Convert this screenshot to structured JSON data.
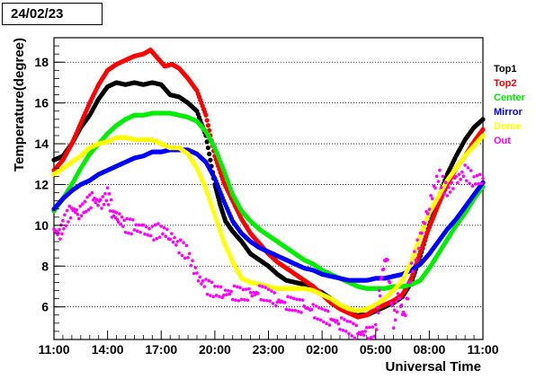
{
  "date_label": "24/02/23",
  "chart_data": {
    "type": "scatter",
    "title": "",
    "xlabel": "Universal Time",
    "ylabel": "Temperature(degree)",
    "xlim": [
      0,
      24
    ],
    "ylim": [
      4.4,
      19.2
    ],
    "grid": "horizontal dotted lines at y ticks",
    "legend_position": "right",
    "x_unit": "hours since 11:00",
    "x_tick_labels": [
      "11:00",
      "14:00",
      "17:00",
      "20:00",
      "23:00",
      "02:00",
      "05:00",
      "08:00",
      "11:00"
    ],
    "x_tick_values": [
      0,
      3,
      6,
      9,
      12,
      15,
      18,
      21,
      24
    ],
    "y_ticks": [
      6,
      8,
      10,
      12,
      14,
      16,
      18
    ],
    "series": [
      {
        "name": "Top1",
        "color": "#000000",
        "points": [
          [
            0,
            13.2
          ],
          [
            0.5,
            13.4
          ],
          [
            1.0,
            14.0
          ],
          [
            1.5,
            14.8
          ],
          [
            2.0,
            15.4
          ],
          [
            2.5,
            16.2
          ],
          [
            3.0,
            16.8
          ],
          [
            3.5,
            17.0
          ],
          [
            4.0,
            16.9
          ],
          [
            4.5,
            17.0
          ],
          [
            5.0,
            16.9
          ],
          [
            5.5,
            17.0
          ],
          [
            6.0,
            16.9
          ],
          [
            6.5,
            16.4
          ],
          [
            7.0,
            16.3
          ],
          [
            7.5,
            16.0
          ],
          [
            8.0,
            15.6
          ],
          [
            8.5,
            14.4
          ],
          [
            9.0,
            12.0
          ],
          [
            9.3,
            11.0
          ],
          [
            9.6,
            10.2
          ],
          [
            10.0,
            9.7
          ],
          [
            10.5,
            9.2
          ],
          [
            11.0,
            8.6
          ],
          [
            11.5,
            8.3
          ],
          [
            12.0,
            8.0
          ],
          [
            12.5,
            7.6
          ],
          [
            13.0,
            7.3
          ],
          [
            13.5,
            7.2
          ],
          [
            14.0,
            7.1
          ],
          [
            14.5,
            6.9
          ],
          [
            15.0,
            6.7
          ],
          [
            15.5,
            6.4
          ],
          [
            16.0,
            6.1
          ],
          [
            16.5,
            5.8
          ],
          [
            17.0,
            5.6
          ],
          [
            17.5,
            5.6
          ],
          [
            18.0,
            5.8
          ],
          [
            18.5,
            6.0
          ],
          [
            19.0,
            6.2
          ],
          [
            19.5,
            6.5
          ],
          [
            20.0,
            7.2
          ],
          [
            20.5,
            8.5
          ],
          [
            21.0,
            10.0
          ],
          [
            21.5,
            11.3
          ],
          [
            22.0,
            12.5
          ],
          [
            22.5,
            13.4
          ],
          [
            23.0,
            14.2
          ],
          [
            23.5,
            14.8
          ],
          [
            24.0,
            15.2
          ]
        ]
      },
      {
        "name": "Top2",
        "color": "#ff0000",
        "points": [
          [
            0,
            12.7
          ],
          [
            0.5,
            13.2
          ],
          [
            1.0,
            14.0
          ],
          [
            1.5,
            15.0
          ],
          [
            2.0,
            16.0
          ],
          [
            2.5,
            16.9
          ],
          [
            3.0,
            17.6
          ],
          [
            3.5,
            17.9
          ],
          [
            4.0,
            18.1
          ],
          [
            4.5,
            18.3
          ],
          [
            5.0,
            18.4
          ],
          [
            5.4,
            18.6
          ],
          [
            5.8,
            18.2
          ],
          [
            6.2,
            17.8
          ],
          [
            6.6,
            17.9
          ],
          [
            7.0,
            17.7
          ],
          [
            7.5,
            17.2
          ],
          [
            8.0,
            16.6
          ],
          [
            8.5,
            15.4
          ],
          [
            9.0,
            13.4
          ],
          [
            9.5,
            12.1
          ],
          [
            10.0,
            11.2
          ],
          [
            10.5,
            10.3
          ],
          [
            11.0,
            9.6
          ],
          [
            11.5,
            9.1
          ],
          [
            12.0,
            8.6
          ],
          [
            12.5,
            8.2
          ],
          [
            13.0,
            7.9
          ],
          [
            13.5,
            7.6
          ],
          [
            14.0,
            7.3
          ],
          [
            14.5,
            7.0
          ],
          [
            15.0,
            6.6
          ],
          [
            15.5,
            6.2
          ],
          [
            16.0,
            5.9
          ],
          [
            16.5,
            5.7
          ],
          [
            17.0,
            5.5
          ],
          [
            17.5,
            5.6
          ],
          [
            18.0,
            5.9
          ],
          [
            18.5,
            6.1
          ],
          [
            19.0,
            6.3
          ],
          [
            19.5,
            6.6
          ],
          [
            20.0,
            7.4
          ],
          [
            20.5,
            8.7
          ],
          [
            21.0,
            9.9
          ],
          [
            21.5,
            11.0
          ],
          [
            22.0,
            12.0
          ],
          [
            22.5,
            12.8
          ],
          [
            23.0,
            13.4
          ],
          [
            23.5,
            14.1
          ],
          [
            24.0,
            14.7
          ]
        ]
      },
      {
        "name": "Center",
        "color": "#00ee00",
        "points": [
          [
            0,
            10.7
          ],
          [
            0.5,
            11.3
          ],
          [
            1.0,
            12.0
          ],
          [
            1.5,
            12.8
          ],
          [
            2.0,
            13.5
          ],
          [
            2.5,
            14.0
          ],
          [
            3.0,
            14.5
          ],
          [
            3.5,
            14.9
          ],
          [
            4.0,
            15.2
          ],
          [
            4.5,
            15.4
          ],
          [
            5.0,
            15.4
          ],
          [
            5.5,
            15.5
          ],
          [
            6.0,
            15.5
          ],
          [
            6.5,
            15.5
          ],
          [
            7.0,
            15.4
          ],
          [
            7.5,
            15.3
          ],
          [
            8.0,
            15.1
          ],
          [
            8.5,
            14.6
          ],
          [
            9.0,
            13.8
          ],
          [
            9.5,
            12.7
          ],
          [
            10.0,
            11.5
          ],
          [
            10.5,
            10.7
          ],
          [
            11.0,
            10.2
          ],
          [
            11.5,
            9.8
          ],
          [
            12.0,
            9.5
          ],
          [
            12.5,
            9.2
          ],
          [
            13.0,
            8.9
          ],
          [
            13.5,
            8.6
          ],
          [
            14.0,
            8.3
          ],
          [
            14.5,
            8.1
          ],
          [
            15.0,
            7.8
          ],
          [
            15.5,
            7.6
          ],
          [
            16.0,
            7.4
          ],
          [
            16.5,
            7.2
          ],
          [
            17.0,
            7.0
          ],
          [
            17.5,
            6.9
          ],
          [
            18.0,
            6.9
          ],
          [
            18.5,
            6.9
          ],
          [
            19.0,
            7.0
          ],
          [
            19.5,
            7.0
          ],
          [
            20.0,
            7.1
          ],
          [
            20.5,
            7.3
          ],
          [
            21.0,
            7.9
          ],
          [
            21.5,
            8.6
          ],
          [
            22.0,
            9.3
          ],
          [
            22.5,
            10.0
          ],
          [
            23.0,
            10.6
          ],
          [
            23.5,
            11.3
          ],
          [
            24.0,
            11.9
          ]
        ]
      },
      {
        "name": "Mirror",
        "color": "#0000ff",
        "points": [
          [
            0,
            10.8
          ],
          [
            0.5,
            11.3
          ],
          [
            1.0,
            11.7
          ],
          [
            1.5,
            12.0
          ],
          [
            2.0,
            12.2
          ],
          [
            2.5,
            12.5
          ],
          [
            3.0,
            12.7
          ],
          [
            3.5,
            12.9
          ],
          [
            4.0,
            13.1
          ],
          [
            4.5,
            13.3
          ],
          [
            5.0,
            13.4
          ],
          [
            5.5,
            13.6
          ],
          [
            6.0,
            13.6
          ],
          [
            6.5,
            13.7
          ],
          [
            7.0,
            13.7
          ],
          [
            7.5,
            13.7
          ],
          [
            8.0,
            13.5
          ],
          [
            8.5,
            13.1
          ],
          [
            9.0,
            12.3
          ],
          [
            9.5,
            11.2
          ],
          [
            10.0,
            10.2
          ],
          [
            10.5,
            9.6
          ],
          [
            11.0,
            9.2
          ],
          [
            11.5,
            8.9
          ],
          [
            12.0,
            8.7
          ],
          [
            12.5,
            8.5
          ],
          [
            13.0,
            8.3
          ],
          [
            13.5,
            8.1
          ],
          [
            14.0,
            7.9
          ],
          [
            14.5,
            7.8
          ],
          [
            15.0,
            7.6
          ],
          [
            15.5,
            7.5
          ],
          [
            16.0,
            7.4
          ],
          [
            16.5,
            7.3
          ],
          [
            17.0,
            7.3
          ],
          [
            17.5,
            7.3
          ],
          [
            18.0,
            7.4
          ],
          [
            18.5,
            7.4
          ],
          [
            19.0,
            7.5
          ],
          [
            19.5,
            7.6
          ],
          [
            20.0,
            7.8
          ],
          [
            20.5,
            8.1
          ],
          [
            21.0,
            8.6
          ],
          [
            21.5,
            9.2
          ],
          [
            22.0,
            9.8
          ],
          [
            22.5,
            10.3
          ],
          [
            23.0,
            10.9
          ],
          [
            23.5,
            11.5
          ],
          [
            24.0,
            12.1
          ]
        ]
      },
      {
        "name": "Dome",
        "color": "#ffff00",
        "points": [
          [
            0,
            12.5
          ],
          [
            0.5,
            12.8
          ],
          [
            1.0,
            13.1
          ],
          [
            1.5,
            13.4
          ],
          [
            2.0,
            13.8
          ],
          [
            2.5,
            14.0
          ],
          [
            3.0,
            14.1
          ],
          [
            3.5,
            14.3
          ],
          [
            4.0,
            14.3
          ],
          [
            4.5,
            14.2
          ],
          [
            5.0,
            14.2
          ],
          [
            5.5,
            14.2
          ],
          [
            6.0,
            14.0
          ],
          [
            6.5,
            13.8
          ],
          [
            7.0,
            13.8
          ],
          [
            7.5,
            13.5
          ],
          [
            8.0,
            12.8
          ],
          [
            8.5,
            11.8
          ],
          [
            9.0,
            10.5
          ],
          [
            9.5,
            9.2
          ],
          [
            10.0,
            8.2
          ],
          [
            10.5,
            7.4
          ],
          [
            11.0,
            7.2
          ],
          [
            11.5,
            7.1
          ],
          [
            12.0,
            7.0
          ],
          [
            12.5,
            6.9
          ],
          [
            13.0,
            6.9
          ],
          [
            13.5,
            6.9
          ],
          [
            14.0,
            6.9
          ],
          [
            14.5,
            6.8
          ],
          [
            15.0,
            6.6
          ],
          [
            15.5,
            6.4
          ],
          [
            16.0,
            6.1
          ],
          [
            16.5,
            5.9
          ],
          [
            17.0,
            5.8
          ],
          [
            17.5,
            5.9
          ],
          [
            18.0,
            6.1
          ],
          [
            18.5,
            6.4
          ],
          [
            19.0,
            6.8
          ],
          [
            19.5,
            7.3
          ],
          [
            20.0,
            8.2
          ],
          [
            20.5,
            9.5
          ],
          [
            21.0,
            10.6
          ],
          [
            21.5,
            11.4
          ],
          [
            22.0,
            12.2
          ],
          [
            22.5,
            12.8
          ],
          [
            23.0,
            13.4
          ],
          [
            23.5,
            13.9
          ],
          [
            24.0,
            14.4
          ]
        ]
      },
      {
        "name": "Out",
        "color": "#ff00ff",
        "points": [
          [
            0,
            9.8
          ],
          [
            0.3,
            9.5
          ],
          [
            0.6,
            10.2
          ],
          [
            1.0,
            10.8
          ],
          [
            1.4,
            10.6
          ],
          [
            1.8,
            11.0
          ],
          [
            2.2,
            11.3
          ],
          [
            2.6,
            11.0
          ],
          [
            3.0,
            11.5
          ],
          [
            3.3,
            10.6
          ],
          [
            3.6,
            10.4
          ],
          [
            4.0,
            10.0
          ],
          [
            4.5,
            9.9
          ],
          [
            5.0,
            9.8
          ],
          [
            5.5,
            9.6
          ],
          [
            6.0,
            9.8
          ],
          [
            6.5,
            9.5
          ],
          [
            7.0,
            9.0
          ],
          [
            7.5,
            8.6
          ],
          [
            8.0,
            7.5
          ],
          [
            8.5,
            7.0
          ],
          [
            9.0,
            6.8
          ],
          [
            9.5,
            6.7
          ],
          [
            10.0,
            6.7
          ],
          [
            10.5,
            6.6
          ],
          [
            11.0,
            6.6
          ],
          [
            11.5,
            6.7
          ],
          [
            12.0,
            6.6
          ],
          [
            12.5,
            6.3
          ],
          [
            13.0,
            6.2
          ],
          [
            13.5,
            6.1
          ],
          [
            14.0,
            6.0
          ],
          [
            14.5,
            5.8
          ],
          [
            15.0,
            5.6
          ],
          [
            15.5,
            5.4
          ],
          [
            16.0,
            5.2
          ],
          [
            16.5,
            5.0
          ],
          [
            17.0,
            4.7
          ],
          [
            17.5,
            4.7
          ],
          [
            18.0,
            4.8
          ],
          [
            18.3,
            7.3
          ],
          [
            18.6,
            8.6
          ],
          [
            19.0,
            5.3
          ],
          [
            19.3,
            6.5
          ],
          [
            19.6,
            5.4
          ],
          [
            20.0,
            7.8
          ],
          [
            20.5,
            9.5
          ],
          [
            21.0,
            11.0
          ],
          [
            21.5,
            12.5
          ],
          [
            22.0,
            11.6
          ],
          [
            22.5,
            12.2
          ],
          [
            23.0,
            12.6
          ],
          [
            23.5,
            12.2
          ],
          [
            24.0,
            12.3
          ]
        ]
      }
    ]
  }
}
